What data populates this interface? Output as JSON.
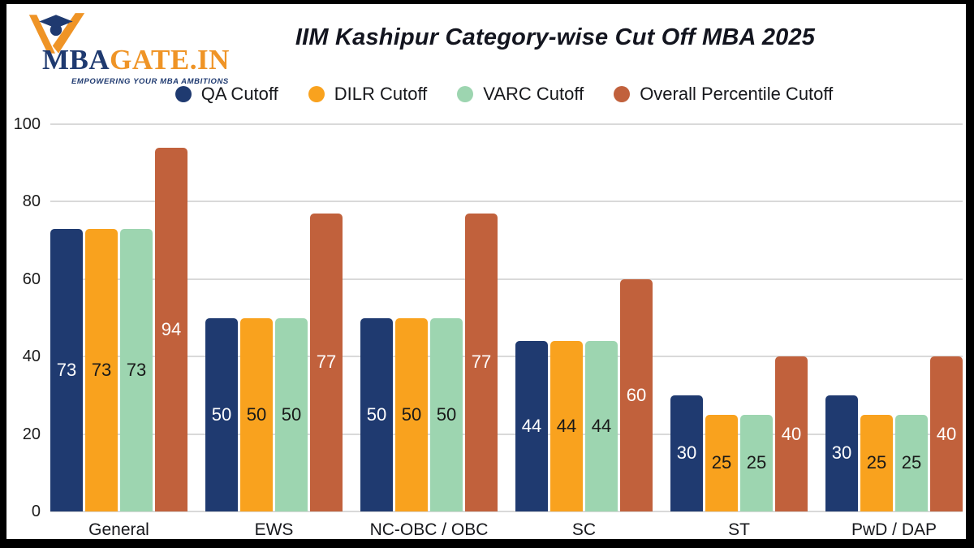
{
  "logo": {
    "brand_primary": "MBA",
    "brand_secondary": "GATE.IN",
    "tagline": "EMPOWERING YOUR MBA AMBITIONS",
    "navy": "#1f3a70",
    "orange": "#ef9426"
  },
  "header": {
    "title": "IIM Kashipur Category-wise Cut Off MBA 2025"
  },
  "chart_data": {
    "type": "bar",
    "title": "IIM Kashipur Category-wise Cut Off MBA 2025",
    "categories": [
      "General",
      "EWS",
      "NC-OBC / OBC",
      "SC",
      "ST",
      "PwD / DAP"
    ],
    "series": [
      {
        "name": "QA Cutoff",
        "color": "#1f3a70",
        "label_color": "#ffffff",
        "values": [
          73,
          50,
          50,
          44,
          30,
          30
        ]
      },
      {
        "name": "DILR Cutoff",
        "color": "#f9a21e",
        "label_color": "#191919",
        "values": [
          73,
          50,
          50,
          44,
          25,
          25
        ]
      },
      {
        "name": "VARC Cutoff",
        "color": "#9dd5b0",
        "label_color": "#191919",
        "values": [
          73,
          50,
          50,
          44,
          25,
          25
        ]
      },
      {
        "name": "Overall Percentile Cutoff",
        "color": "#c1613c",
        "label_color": "#ffffff",
        "values": [
          94,
          77,
          77,
          60,
          40,
          40
        ]
      }
    ],
    "ylim": [
      0,
      100
    ],
    "yticks": [
      0,
      20,
      40,
      60,
      80,
      100
    ],
    "grid": true,
    "grid_color": "#d9d9d9",
    "legend_position": "top",
    "xlabel": "",
    "ylabel": ""
  }
}
